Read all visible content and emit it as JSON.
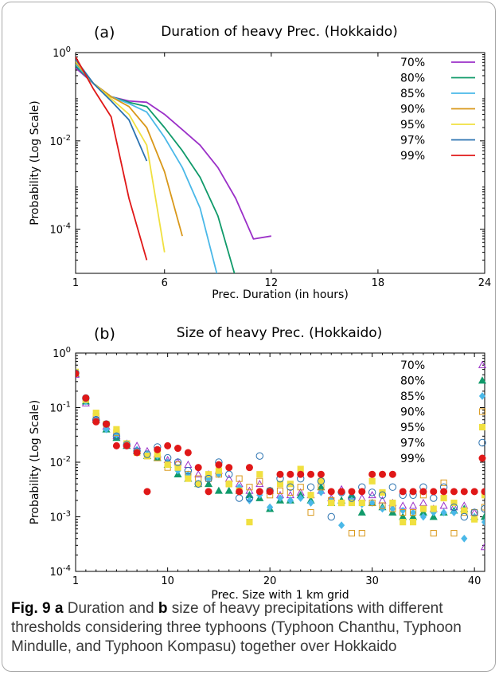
{
  "caption": {
    "fig_label": "Fig. 9",
    "a_letter": "a",
    "part1": " Duration and ",
    "b_letter": "b",
    "part2": " size of heavy precipitations with different thresholds considering three typhoons (Typhoon Chanthu, Typhoon Mindulle, and Typhoon Kompasu) together over Hokkaido"
  },
  "colors": {
    "70%": "#9b30c8",
    "80%": "#109a6a",
    "85%": "#4ab8e8",
    "90%": "#d9981a",
    "95%": "#f0e040",
    "97%": "#2a72b0",
    "99%": "#e01818"
  },
  "chart_data": [
    {
      "type": "line",
      "panel_label": "(a)",
      "title": "Duration of heavy Prec. (Hokkaido)",
      "xlabel": "Prec. Duration (in hours)",
      "ylabel": "Probability (Log Scale)",
      "xlim": [
        1,
        24
      ],
      "ylim": [
        1e-05,
        1
      ],
      "yscale": "log",
      "xticks": [
        1,
        6,
        12,
        18,
        24
      ],
      "yticks": [
        {
          "value": 1,
          "base": "10",
          "exp": "0"
        },
        {
          "value": 0.01,
          "base": "10",
          "exp": "-2"
        },
        {
          "value": 0.0001,
          "base": "10",
          "exp": "-4"
        }
      ],
      "legend_position": "top-right",
      "series": [
        {
          "name": "70%",
          "x": [
            1,
            2,
            3,
            4,
            5,
            6,
            7,
            8,
            9,
            10,
            11,
            12
          ],
          "y": [
            0.45,
            0.2,
            0.1,
            0.08,
            0.075,
            0.04,
            0.018,
            0.008,
            0.0025,
            0.0005,
            6e-05,
            7e-05
          ]
        },
        {
          "name": "80%",
          "x": [
            1,
            2,
            3,
            4,
            5,
            6,
            7,
            8,
            9,
            10
          ],
          "y": [
            0.5,
            0.2,
            0.1,
            0.075,
            0.06,
            0.02,
            0.006,
            0.0015,
            0.0002,
            8e-06
          ]
        },
        {
          "name": "85%",
          "x": [
            1,
            2,
            3,
            4,
            5,
            6,
            7,
            8,
            9
          ],
          "y": [
            0.55,
            0.2,
            0.1,
            0.07,
            0.045,
            0.012,
            0.0025,
            0.0003,
            8e-06
          ]
        },
        {
          "name": "90%",
          "x": [
            1,
            2,
            3,
            4,
            5,
            6,
            7
          ],
          "y": [
            0.6,
            0.2,
            0.1,
            0.06,
            0.02,
            0.002,
            7e-05
          ]
        },
        {
          "name": "95%",
          "x": [
            1,
            2,
            3,
            4,
            5,
            6
          ],
          "y": [
            0.65,
            0.2,
            0.09,
            0.04,
            0.008,
            3e-05
          ]
        },
        {
          "name": "97%",
          "x": [
            1,
            2,
            3,
            4,
            5
          ],
          "y": [
            0.7,
            0.2,
            0.08,
            0.03,
            0.0035
          ]
        },
        {
          "name": "99%",
          "x": [
            1,
            2,
            3,
            4,
            5
          ],
          "y": [
            0.8,
            0.15,
            0.035,
            0.0005,
            2e-05
          ]
        }
      ]
    },
    {
      "type": "scatter",
      "panel_label": "(b)",
      "title": "Size of heavy Prec. (Hokkaido)",
      "xlabel": "Prec. Size with 1 km grid",
      "ylabel": "Probability (Log Scale)",
      "xlim": [
        1,
        41
      ],
      "ylim": [
        0.0001,
        1
      ],
      "yscale": "log",
      "xticks": [
        1,
        10,
        20,
        30,
        40
      ],
      "yticks": [
        {
          "value": 1,
          "base": "10",
          "exp": "0"
        },
        {
          "value": 0.1,
          "base": "10",
          "exp": "-1"
        },
        {
          "value": 0.01,
          "base": "10",
          "exp": "-2"
        },
        {
          "value": 0.001,
          "base": "10",
          "exp": "-3"
        },
        {
          "value": 0.0001,
          "base": "10",
          "exp": "-4"
        }
      ],
      "legend_position": "top-right",
      "series": [
        {
          "name": "70%",
          "marker": "open-triangle",
          "x": [
            1,
            2,
            3,
            4,
            5,
            6,
            7,
            8,
            9,
            10,
            11,
            12,
            13,
            14,
            15,
            16,
            17,
            18,
            19,
            20,
            21,
            22,
            23,
            24,
            25,
            26,
            27,
            28,
            29,
            30,
            31,
            32,
            33,
            34,
            35,
            36,
            37,
            38,
            39,
            40,
            41
          ],
          "y": [
            0.4,
            0.12,
            0.065,
            0.045,
            0.03,
            0.022,
            0.02,
            0.016,
            0.014,
            0.011,
            0.01,
            0.009,
            0.006,
            0.006,
            0.007,
            0.005,
            0.004,
            0.003,
            0.004,
            0.003,
            0.0025,
            0.0025,
            0.0028,
            0.0025,
            0.003,
            0.0022,
            0.0032,
            0.0024,
            0.0022,
            0.0025,
            0.002,
            0.0018,
            0.0016,
            0.0016,
            0.0018,
            0.0014,
            0.0016,
            0.0015,
            0.0016,
            0.0012,
            0.00028
          ]
        },
        {
          "name": "80%",
          "marker": "filled-triangle",
          "x": [
            1,
            2,
            3,
            4,
            5,
            6,
            7,
            8,
            9,
            10,
            11,
            12,
            13,
            14,
            15,
            16,
            17,
            18,
            19,
            20,
            21,
            22,
            23,
            24,
            25,
            26,
            27,
            28,
            29,
            30,
            31,
            32,
            33,
            34,
            35,
            36,
            37,
            38,
            39,
            40,
            41
          ],
          "y": [
            0.42,
            0.13,
            0.06,
            0.04,
            0.028,
            0.02,
            0.016,
            0.013,
            0.012,
            0.009,
            0.006,
            0.005,
            0.004,
            0.004,
            0.003,
            0.003,
            0.003,
            0.0025,
            0.0022,
            0.0014,
            0.002,
            0.002,
            0.0025,
            0.002,
            0.0035,
            0.0018,
            0.002,
            0.0025,
            0.0012,
            0.0018,
            0.0015,
            0.0012,
            0.001,
            0.001,
            0.0012,
            0.001,
            0.0012,
            0.0013,
            0.0014,
            0.001,
            0.001
          ]
        },
        {
          "name": "85%",
          "marker": "filled-diamond",
          "x": [
            1,
            2,
            3,
            4,
            5,
            6,
            7,
            8,
            9,
            10,
            11,
            12,
            13,
            14,
            15,
            16,
            17,
            18,
            19,
            20,
            21,
            22,
            23,
            24,
            25,
            26,
            27,
            28,
            29,
            30,
            31,
            32,
            33,
            34,
            35,
            36,
            37,
            38,
            39,
            40,
            41
          ],
          "y": [
            0.44,
            0.13,
            0.058,
            0.04,
            0.032,
            0.022,
            0.017,
            0.014,
            0.013,
            0.01,
            0.007,
            0.006,
            0.004,
            0.005,
            0.006,
            0.004,
            0.0035,
            0.002,
            0.0025,
            0.0015,
            0.0022,
            0.002,
            0.0022,
            0.0018,
            0.0028,
            0.002,
            0.0007,
            0.002,
            0.0017,
            0.0018,
            0.0014,
            0.0014,
            0.0013,
            0.0012,
            0.001,
            0.0012,
            0.0012,
            0.0012,
            0.0004,
            0.001,
            0.0008
          ]
        },
        {
          "name": "90%",
          "marker": "open-square",
          "x": [
            1,
            2,
            3,
            4,
            5,
            6,
            7,
            8,
            9,
            10,
            11,
            12,
            13,
            14,
            15,
            16,
            17,
            18,
            19,
            20,
            21,
            22,
            23,
            24,
            25,
            26,
            27,
            28,
            29,
            30,
            31,
            32,
            33,
            34,
            35,
            36,
            37,
            38,
            39,
            40,
            41
          ],
          "y": [
            0.43,
            0.14,
            0.07,
            0.05,
            0.035,
            0.022,
            0.015,
            0.013,
            0.012,
            0.008,
            0.009,
            0.006,
            0.005,
            0.005,
            0.006,
            0.004,
            0.005,
            0.0035,
            0.0045,
            0.0025,
            0.003,
            0.0028,
            0.0035,
            0.0012,
            0.0035,
            0.002,
            0.0018,
            0.0005,
            0.0005,
            0.0018,
            0.0016,
            0.0014,
            0.0012,
            0.0012,
            0.0025,
            0.0005,
            0.0042,
            0.0005,
            0.0012,
            0.0012,
            0.0015
          ]
        },
        {
          "name": "95%",
          "marker": "filled-square",
          "x": [
            1,
            2,
            3,
            4,
            5,
            6,
            7,
            8,
            9,
            10,
            11,
            12,
            13,
            14,
            15,
            16,
            17,
            18,
            19,
            20,
            21,
            22,
            23,
            24,
            25,
            26,
            27,
            28,
            29,
            30,
            31,
            32,
            33,
            34,
            35,
            36,
            37,
            38,
            39,
            40,
            41
          ],
          "y": [
            0.45,
            0.14,
            0.08,
            0.05,
            0.04,
            0.022,
            0.015,
            0.013,
            0.014,
            0.009,
            0.008,
            0.005,
            0.004,
            0.006,
            0.007,
            0.004,
            0.003,
            0.0008,
            0.006,
            0.003,
            0.004,
            0.004,
            0.0075,
            0.0025,
            0.0045,
            0.0018,
            0.0018,
            0.0018,
            0.0018,
            0.0045,
            0.0028,
            0.0018,
            0.0008,
            0.0008,
            0.0014,
            0.0014,
            0.0022,
            0.0018,
            0.0013,
            0.0009,
            0.0025
          ]
        },
        {
          "name": "97%",
          "marker": "open-circle",
          "x": [
            1,
            2,
            3,
            4,
            5,
            6,
            7,
            8,
            9,
            10,
            11,
            12,
            13,
            14,
            15,
            16,
            17,
            18,
            19,
            20,
            21,
            22,
            23,
            24,
            25,
            26,
            27,
            28,
            29,
            30,
            31,
            32,
            33,
            34,
            35,
            36,
            37,
            38,
            39,
            40,
            41
          ],
          "y": [
            0.43,
            0.15,
            0.06,
            0.05,
            0.03,
            0.021,
            0.016,
            0.014,
            0.019,
            0.012,
            0.01,
            0.007,
            0.004,
            0.005,
            0.01,
            0.006,
            0.0022,
            0.0022,
            0.013,
            0.003,
            0.005,
            0.0035,
            0.005,
            0.0035,
            0.0045,
            0.001,
            0.0028,
            0.0022,
            0.0035,
            0.0028,
            0.0025,
            0.0035,
            0.0025,
            0.0025,
            0.0035,
            0.0022,
            0.0035,
            0.0015,
            0.001,
            0.0012,
            0.0014
          ]
        },
        {
          "name": "99%",
          "marker": "filled-circle",
          "x": [
            1,
            2,
            3,
            4,
            5,
            6,
            7,
            8,
            9,
            10,
            11,
            12,
            13,
            14,
            15,
            16,
            17,
            18,
            19,
            20,
            21,
            22,
            23,
            24,
            25,
            26,
            27,
            28,
            29,
            30,
            31,
            32,
            33,
            34,
            35,
            36,
            37,
            38,
            39,
            40,
            41
          ],
          "y": [
            0.42,
            0.15,
            0.055,
            0.05,
            0.02,
            0.02,
            0.015,
            0.0029,
            0.017,
            0.02,
            0.018,
            0.015,
            0.008,
            0.0029,
            0.009,
            0.008,
            0.0029,
            0.008,
            0.0029,
            0.0029,
            0.006,
            0.006,
            0.006,
            0.006,
            0.006,
            0.0029,
            0.0029,
            0.0029,
            0.0029,
            0.006,
            0.006,
            0.006,
            0.0029,
            0.0029,
            0.0029,
            0.0029,
            0.0029,
            0.0029,
            0.0029,
            0.0029,
            0.0029
          ]
        }
      ]
    }
  ]
}
